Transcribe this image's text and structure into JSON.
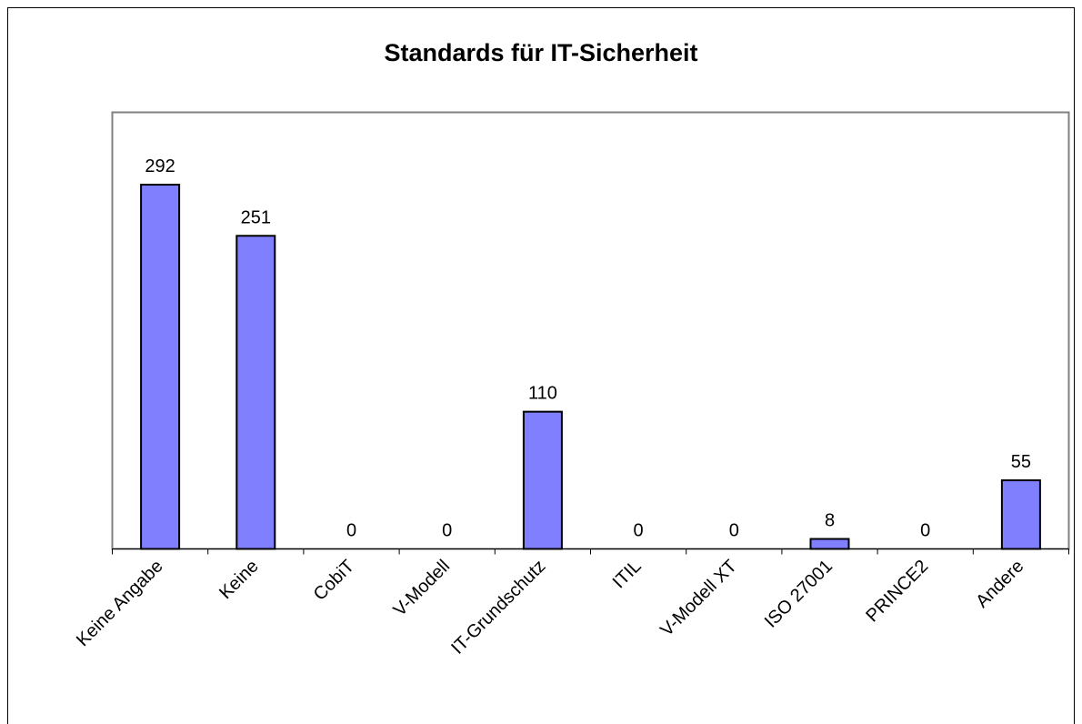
{
  "chart_data": {
    "type": "bar",
    "title": "Standards für IT-Sicherheit",
    "categories": [
      "Keine Angabe",
      "Keine",
      "CobiT",
      "V-Modell",
      "IT-Grundschutz",
      "ITIL",
      "V-Modell XT",
      "ISO 27001",
      "PRINCE2",
      "Andere"
    ],
    "values": [
      292,
      251,
      0,
      0,
      110,
      0,
      0,
      8,
      0,
      55
    ],
    "color": "#8080ff",
    "ylim": [
      0,
      350
    ]
  }
}
